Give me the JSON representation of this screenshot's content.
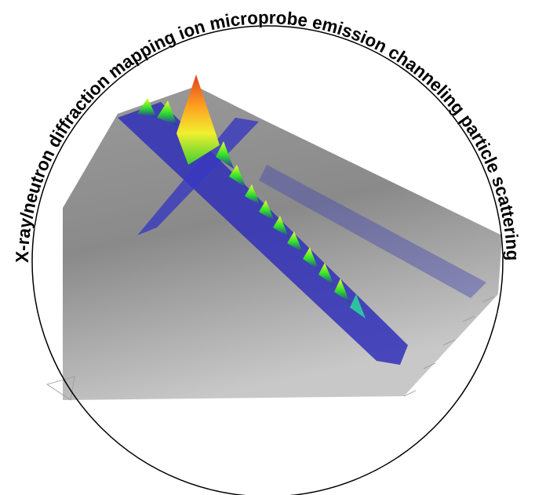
{
  "logo": {
    "arc_text": "X-ray/neutron diffraction mapping ion microprobe emission channeling particle scattering"
  }
}
